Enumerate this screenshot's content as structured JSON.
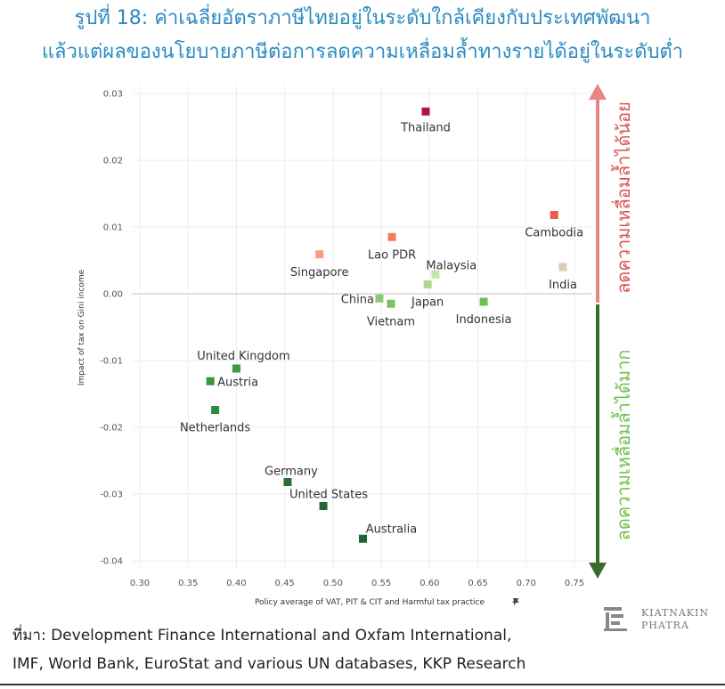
{
  "header": {
    "title_line1": "รูปที่ 18: ค่าเฉลี่ยอัตราภาษีไทยอยู่ในระดับใกล้เคียงกับประเทศพัฒนา",
    "title_line2": "แล้วแต่ผลของนโยบายภาษีต่อการลดความเหลื่อมล้ำทางรายได้อยู่ในระดับต่ำ"
  },
  "chart_data": {
    "type": "scatter",
    "xlabel": "Policy average of VAT, PIT & CIT and Harmful tax practice",
    "ylabel": "Impact of tax on Gini income",
    "xlim": [
      0.3,
      0.75
    ],
    "ylim": [
      -0.04,
      0.03
    ],
    "x_ticks": [
      "0.30",
      "0.35",
      "0.40",
      "0.45",
      "0.50",
      "0.55",
      "0.60",
      "0.65",
      "0.70",
      "0.75"
    ],
    "y_ticks": [
      "0.03",
      "0.02",
      "0.01",
      "0.00",
      "-0.01",
      "-0.02",
      "-0.03",
      "-0.04"
    ],
    "grid": true,
    "arrow_up_label": "ลดความเหลื่อมล้ำได้น้อย",
    "arrow_down_label": "ลดความเหลื่อมล้ำได้มาก",
    "arrow_up_color": "#e88686",
    "arrow_down_color": "#3a6b2e",
    "arrow_up_text_color": "#d9534f",
    "arrow_down_text_color": "#6fbf4a",
    "points": [
      {
        "label": "Thailand",
        "x": 0.596,
        "y": 0.0273,
        "color": "#b0173a"
      },
      {
        "label": "Cambodia",
        "x": 0.729,
        "y": 0.0118,
        "color": "#f05a4a"
      },
      {
        "label": "Lao PDR",
        "x": 0.561,
        "y": 0.0085,
        "color": "#f47a5e"
      },
      {
        "label": "Singapore",
        "x": 0.486,
        "y": 0.0059,
        "color": "#f59b80"
      },
      {
        "label": "India",
        "x": 0.738,
        "y": 0.004,
        "color": "#d9cdb8"
      },
      {
        "label": "Malaysia",
        "x": 0.606,
        "y": 0.0029,
        "color": "#c7e3a8"
      },
      {
        "label": "Japan",
        "x": 0.598,
        "y": 0.0014,
        "color": "#afd991"
      },
      {
        "label": "China",
        "x": 0.548,
        "y": -0.0007,
        "color": "#8cca6e"
      },
      {
        "label": "Vietnam",
        "x": 0.56,
        "y": -0.0015,
        "color": "#7cc25f"
      },
      {
        "label": "Indonesia",
        "x": 0.656,
        "y": -0.0012,
        "color": "#72bd58"
      },
      {
        "label": "United Kingdom",
        "x": 0.4,
        "y": -0.0112,
        "color": "#3f9a43"
      },
      {
        "label": "Austria",
        "x": 0.373,
        "y": -0.0131,
        "color": "#3a9540"
      },
      {
        "label": "Netherlands",
        "x": 0.378,
        "y": -0.0174,
        "color": "#338a3b"
      },
      {
        "label": "Germany",
        "x": 0.453,
        "y": -0.0282,
        "color": "#25713a"
      },
      {
        "label": "United States",
        "x": 0.49,
        "y": -0.0318,
        "color": "#216836"
      },
      {
        "label": "Australia",
        "x": 0.531,
        "y": -0.0367,
        "color": "#1e6232"
      }
    ]
  },
  "source": {
    "line1": "ที่มา: Development Finance International and Oxfam International,",
    "line2": "IMF, World Bank, EuroStat and various UN databases, KKP Research"
  },
  "logo": {
    "line1": "KIATNAKIN",
    "line2": "PHATRA"
  }
}
